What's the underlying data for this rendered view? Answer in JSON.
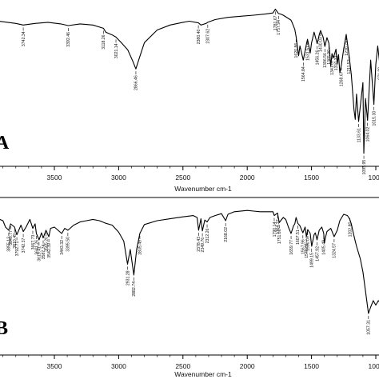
{
  "chart_data": [
    {
      "type": "line",
      "panel": "A",
      "title": "",
      "xlabel": "Wavenumber cm-1",
      "ylabel": "",
      "xlim": [
        4000,
        950
      ],
      "x_reversed": true,
      "xticks": [
        3500,
        3000,
        2500,
        2000,
        1500,
        1000
      ],
      "xtick_labels": [
        "3500",
        "3000",
        "2500",
        "2000",
        "1500",
        "1000"
      ],
      "series": [
        {
          "x": [
            4000,
            3900,
            3800,
            3742,
            3650,
            3550,
            3450,
            3392,
            3300,
            3200,
            3118,
            3100,
            3050,
            3021,
            2980,
            2930,
            2890,
            2866,
            2840,
            2800,
            2700,
            2600,
            2500,
            2450,
            2380,
            2360,
            2320,
            2307,
            2250,
            2150,
            2050,
            1950,
            1860,
            1800,
            1781,
            1757,
            1740,
            1720,
            1700,
            1680,
            1660,
            1650,
            1630,
            1620,
            1600,
            1590,
            1564,
            1540,
            1531,
            1510,
            1500,
            1480,
            1456,
            1440,
            1430,
            1410,
            1396,
            1380,
            1365,
            1350,
            1341,
            1330,
            1310,
            1300,
            1290,
            1280,
            1268,
            1250,
            1230,
            1210,
            1190,
            1170,
            1160,
            1150,
            1134,
            1100,
            1093,
            1080,
            1064,
            1040,
            1015,
            1000,
            985,
            972,
            960,
            950
          ],
          "y": [
            97.5,
            97.2,
            96.9,
            96.6,
            96.9,
            97.1,
            96.8,
            96.5,
            96.8,
            96.6,
            96.0,
            95.3,
            94.8,
            94.4,
            93.4,
            92.1,
            90.0,
            88.6,
            90.5,
            93.4,
            95.7,
            96.6,
            97.1,
            97.3,
            97.0,
            96.6,
            96.9,
            97.1,
            97.6,
            98.0,
            98.2,
            98.4,
            98.6,
            98.8,
            99.5,
            98.7,
            98.6,
            98.4,
            98.1,
            97.8,
            97.5,
            97.0,
            95.8,
            94.5,
            91.0,
            92.8,
            90.2,
            93.1,
            94.0,
            91.5,
            93.3,
            95.3,
            93.2,
            94.8,
            95.6,
            94.4,
            92.7,
            94.3,
            93.3,
            89.1,
            91.4,
            90.6,
            92.2,
            89.5,
            91.2,
            87.9,
            89.3,
            92.2,
            94.9,
            91.5,
            87.5,
            81.2,
            79.4,
            84.0,
            79.0,
            86.1,
            73.2,
            83.2,
            79.2,
            90.2,
            82.1,
            89.4,
            92.8,
            90.1,
            93.2,
            95.0
          ]
        }
      ],
      "peak_labels": [
        {
          "x": 3742,
          "y": 96.6,
          "text": "3742.34"
        },
        {
          "x": 3392,
          "y": 96.5,
          "text": "3392.46"
        },
        {
          "x": 3118,
          "y": 96.0,
          "text": "3118.26"
        },
        {
          "x": 3021,
          "y": 94.4,
          "text": "3021.14"
        },
        {
          "x": 2866,
          "y": 88.6,
          "text": "2866.46"
        },
        {
          "x": 2380,
          "y": 97.0,
          "text": "2380.40"
        },
        {
          "x": 2307,
          "y": 97.1,
          "text": "2307.62"
        },
        {
          "x": 1781,
          "y": 99.5,
          "text": "1781.67"
        },
        {
          "x": 1757,
          "y": 98.7,
          "text": "1757.94"
        },
        {
          "x": 1620,
          "y": 94.5,
          "text": "1620.86"
        },
        {
          "x": 1564,
          "y": 90.2,
          "text": "1564.84"
        },
        {
          "x": 1531,
          "y": 94.0,
          "text": "1531.51"
        },
        {
          "x": 1456,
          "y": 93.2,
          "text": "1456.26"
        },
        {
          "x": 1430,
          "y": 95.6,
          "text": "1430.03"
        },
        {
          "x": 1396,
          "y": 92.7,
          "text": "1396.56"
        },
        {
          "x": 1365,
          "y": 93.3,
          "text": "1365.90"
        },
        {
          "x": 1341,
          "y": 91.4,
          "text": "1341.07"
        },
        {
          "x": 1310,
          "y": 92.2,
          "text": "1310.32"
        },
        {
          "x": 1268,
          "y": 89.3,
          "text": "1268.67"
        },
        {
          "x": 1230,
          "y": 94.9,
          "text": "1230.79"
        },
        {
          "x": 1210,
          "y": 91.5,
          "text": "1211.53"
        },
        {
          "x": 1134,
          "y": 79.0,
          "text": "1133.61"
        },
        {
          "x": 1093,
          "y": 73.2,
          "text": "1093.95"
        },
        {
          "x": 1064,
          "y": 79.2,
          "text": "1064.02"
        },
        {
          "x": 1015,
          "y": 82.1,
          "text": "1015.30"
        },
        {
          "x": 972,
          "y": 90.1,
          "text": "971.89"
        }
      ]
    },
    {
      "type": "line",
      "panel": "B",
      "title": "",
      "xlabel": "Wavenumber cm-1",
      "ylabel": "",
      "xlim": [
        4000,
        950
      ],
      "x_reversed": true,
      "xticks": [
        3500,
        3000,
        2500,
        2000,
        1500,
        1000
      ],
      "xtick_labels": [
        "3500",
        "3000",
        "2500",
        "2000",
        "1500",
        "1000"
      ],
      "series": [
        {
          "x": [
            4000,
            3960,
            3900,
            3880,
            3855,
            3840,
            3810,
            3792,
            3760,
            3742,
            3720,
            3690,
            3668,
            3650,
            3640,
            3619,
            3600,
            3587,
            3565,
            3543,
            3530,
            3500,
            3443,
            3420,
            3395,
            3350,
            3300,
            3250,
            3200,
            3150,
            3100,
            3050,
            3000,
            2960,
            2931,
            2910,
            2882,
            2860,
            2835,
            2800,
            2700,
            2600,
            2500,
            2420,
            2390,
            2378,
            2360,
            2349,
            2330,
            2312,
            2290,
            2250,
            2200,
            2168,
            2150,
            2100,
            2000,
            1950,
            1900,
            1860,
            1840,
            1800,
            1790,
            1764,
            1751,
            1720,
            1700,
            1680,
            1659,
            1640,
            1630,
            1620,
            1607,
            1590,
            1567,
            1550,
            1540,
            1530,
            1510,
            1499,
            1480,
            1470,
            1457,
            1440,
            1420,
            1405,
            1400,
            1390,
            1380,
            1350,
            1324,
            1300,
            1280,
            1250,
            1220,
            1202,
            1190,
            1180,
            1165,
            1150,
            1120,
            1100,
            1080,
            1057,
            1040,
            1020,
            1000,
            980,
            960,
            950
          ],
          "y": [
            98.0,
            97.5,
            97.0,
            96.0,
            95.5,
            96.5,
            96.0,
            94.8,
            96.3,
            95.3,
            96.0,
            97.2,
            95.8,
            96.5,
            95.0,
            94.0,
            95.1,
            94.3,
            95.5,
            94.5,
            95.8,
            96.0,
            95.0,
            95.8,
            95.5,
            96.3,
            96.8,
            97.0,
            97.2,
            97.0,
            96.6,
            96.3,
            95.2,
            93.8,
            90.2,
            92.5,
            88.5,
            92.5,
            95.0,
            96.4,
            97.0,
            97.3,
            97.6,
            97.8,
            97.5,
            95.5,
            97.3,
            95.4,
            97.1,
            96.8,
            97.5,
            97.8,
            98.1,
            97.0,
            98.0,
            98.4,
            98.6,
            98.5,
            98.4,
            98.4,
            98.4,
            98.4,
            97.8,
            98.2,
            96.7,
            97.5,
            97.2,
            96.0,
            95.0,
            96.2,
            96.5,
            97.5,
            96.6,
            96.2,
            95.1,
            96.0,
            94.5,
            95.6,
            95.0,
            93.0,
            94.8,
            95.1,
            94.0,
            95.5,
            96.0,
            95.0,
            93.5,
            94.5,
            95.3,
            95.8,
            94.5,
            95.5,
            97.0,
            98.0,
            97.8,
            97.2,
            96.5,
            95.5,
            94.2,
            93.0,
            91.0,
            89.0,
            86.0,
            82.5,
            83.5,
            84.5,
            83.8,
            84.5,
            84.0,
            84.2
          ]
        }
      ],
      "peak_labels": [
        {
          "x": 3855,
          "y": 95.5,
          "text": "3855.13"
        },
        {
          "x": 3840,
          "y": 96.5,
          "text": "3840.77"
        },
        {
          "x": 3810,
          "y": 96.0,
          "text": "3810.49"
        },
        {
          "x": 3792,
          "y": 94.8,
          "text": "3792.71"
        },
        {
          "x": 3742,
          "y": 95.3,
          "text": "3742.37"
        },
        {
          "x": 3668,
          "y": 95.8,
          "text": "3667.73"
        },
        {
          "x": 3640,
          "y": 95.0,
          "text": "3641.26"
        },
        {
          "x": 3619,
          "y": 94.0,
          "text": "3619.41"
        },
        {
          "x": 3587,
          "y": 94.3,
          "text": "3587.74"
        },
        {
          "x": 3565,
          "y": 95.5,
          "text": "3565.20"
        },
        {
          "x": 3543,
          "y": 94.5,
          "text": "3542.39"
        },
        {
          "x": 3443,
          "y": 95.0,
          "text": "3443.32"
        },
        {
          "x": 3395,
          "y": 95.5,
          "text": "3395.50"
        },
        {
          "x": 2931,
          "y": 90.2,
          "text": "2931.28"
        },
        {
          "x": 2882,
          "y": 88.5,
          "text": "2882.74"
        },
        {
          "x": 2835,
          "y": 95.0,
          "text": "2835.49"
        },
        {
          "x": 2378,
          "y": 95.5,
          "text": "2378.43"
        },
        {
          "x": 2349,
          "y": 95.4,
          "text": "2349.76"
        },
        {
          "x": 2312,
          "y": 96.8,
          "text": "2312.26"
        },
        {
          "x": 2168,
          "y": 97.0,
          "text": "2168.02"
        },
        {
          "x": 1790,
          "y": 97.8,
          "text": "1790.14"
        },
        {
          "x": 1764,
          "y": 98.2,
          "text": "1764.32"
        },
        {
          "x": 1751,
          "y": 96.7,
          "text": "1751.66"
        },
        {
          "x": 1659,
          "y": 95.0,
          "text": "1659.77"
        },
        {
          "x": 1607,
          "y": 96.6,
          "text": "1607.51"
        },
        {
          "x": 1567,
          "y": 95.1,
          "text": "1567.96"
        },
        {
          "x": 1540,
          "y": 94.5,
          "text": "1540.81"
        },
        {
          "x": 1530,
          "y": 95.6,
          "text": "1530.09"
        },
        {
          "x": 1499,
          "y": 93.0,
          "text": "1499.15"
        },
        {
          "x": 1457,
          "y": 94.0,
          "text": "1457.92"
        },
        {
          "x": 1405,
          "y": 95.0,
          "text": "1405.49"
        },
        {
          "x": 1324,
          "y": 94.5,
          "text": "1324.57"
        },
        {
          "x": 1202,
          "y": 97.8,
          "text": "1202.80"
        },
        {
          "x": 1057,
          "y": 82.5,
          "text": "1057.31"
        }
      ]
    }
  ],
  "panels": {
    "a_letter": "A",
    "b_letter": "B"
  }
}
